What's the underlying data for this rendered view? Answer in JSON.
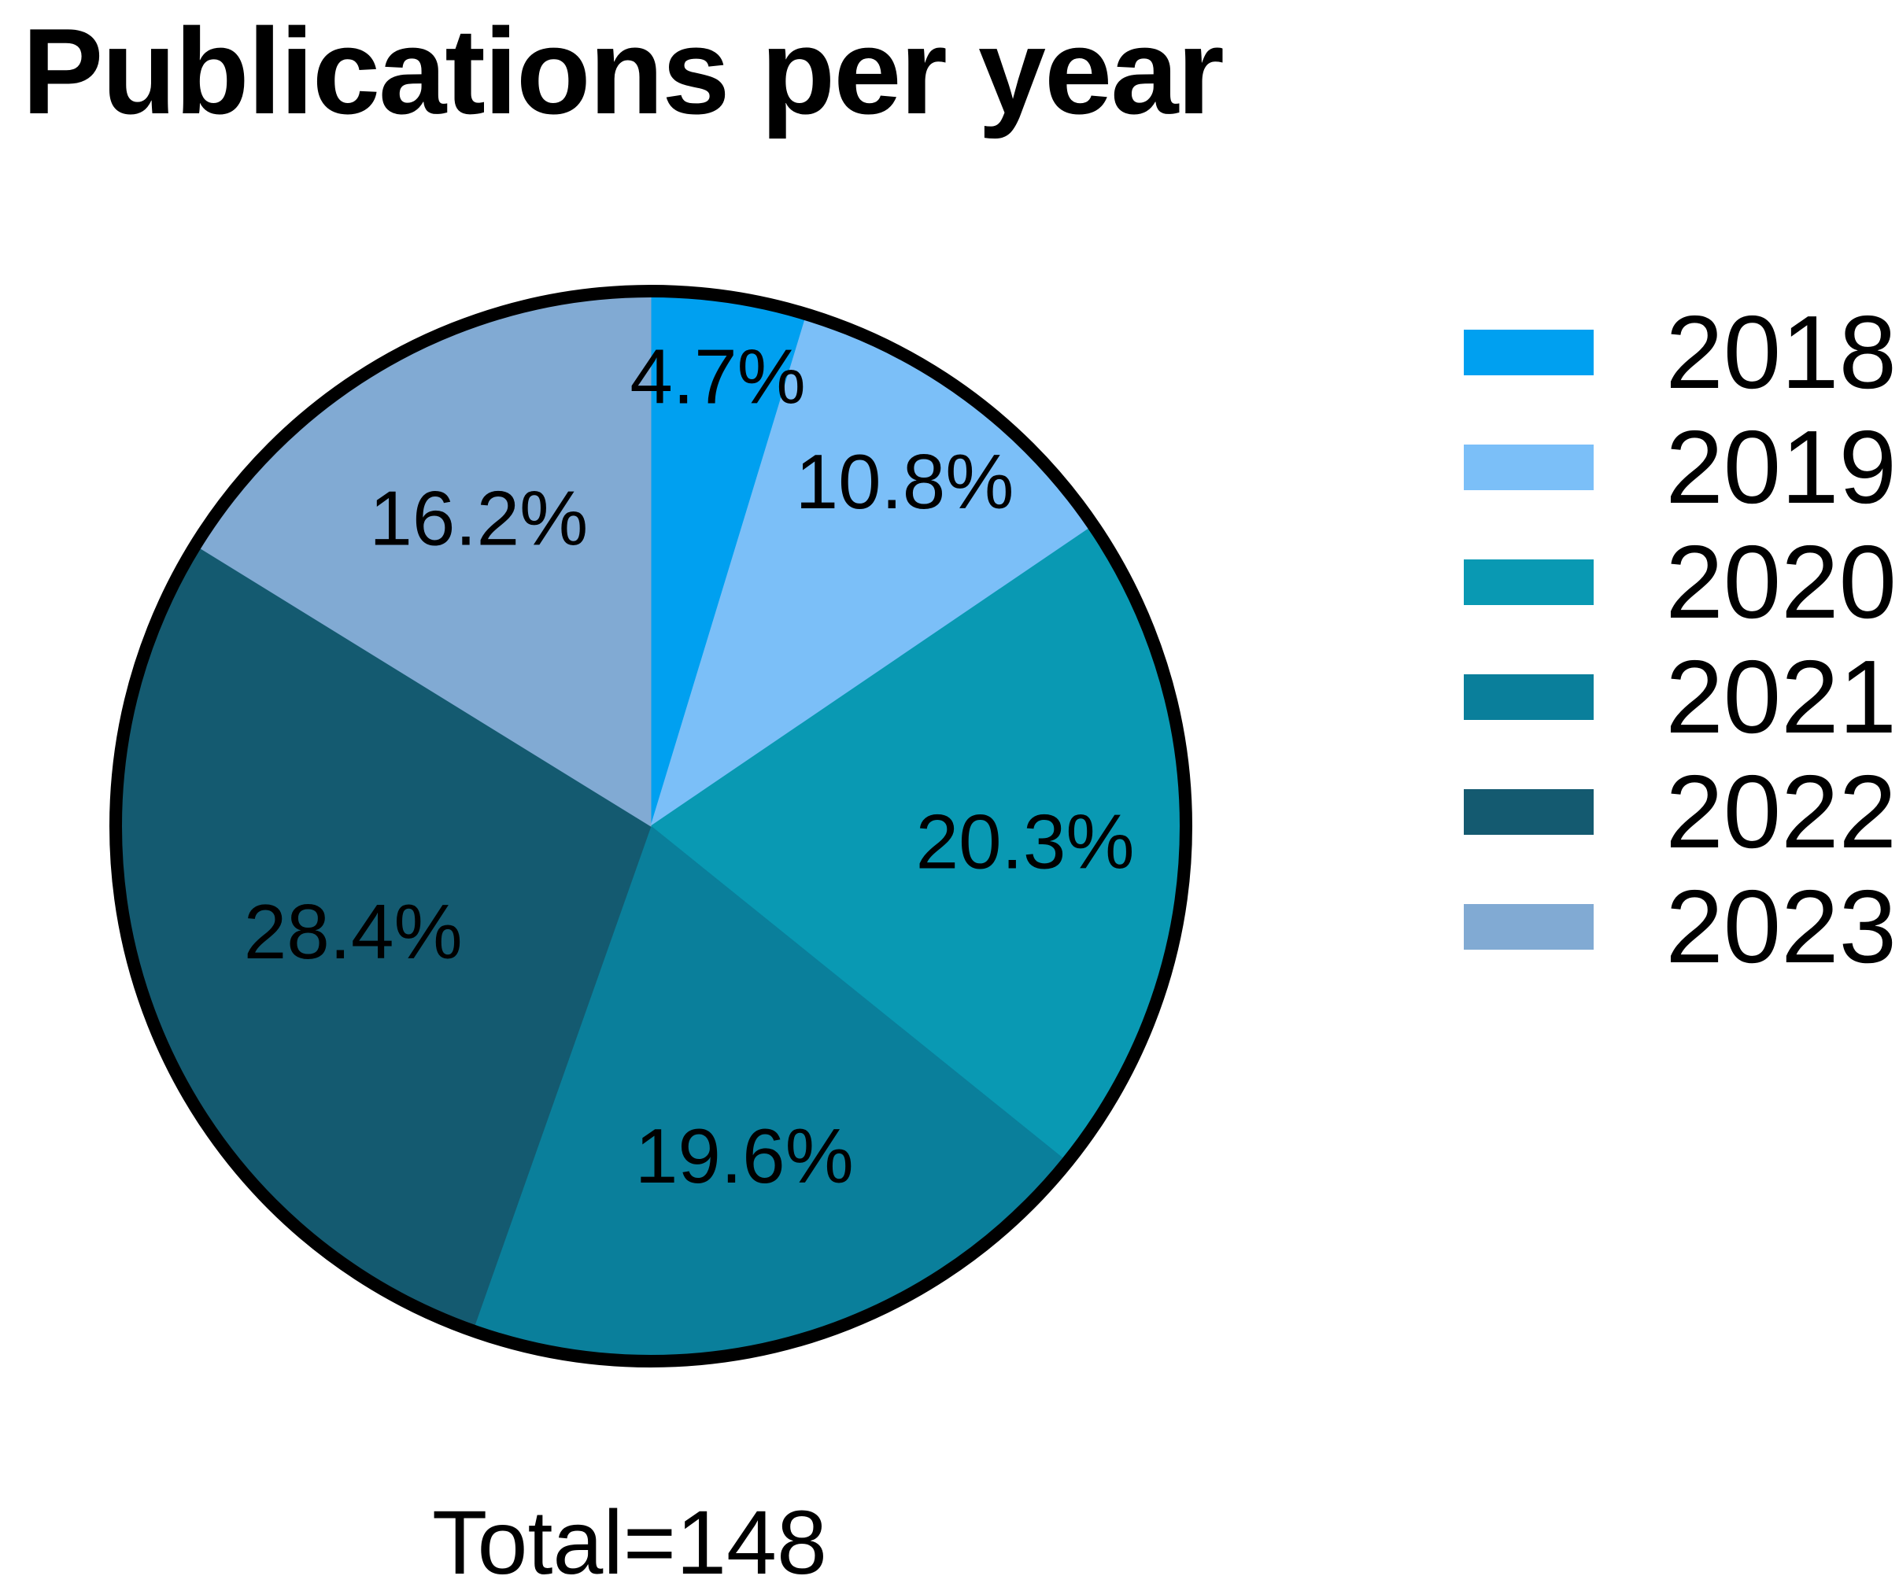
{
  "title": "Publications per year",
  "total_text": "Total=148",
  "chart_data": {
    "type": "pie",
    "title": "Publications per year",
    "categories": [
      "2018",
      "2019",
      "2020",
      "2021",
      "2022",
      "2023"
    ],
    "values": [
      4.7,
      10.8,
      20.3,
      19.6,
      28.4,
      16.2
    ],
    "slice_labels": [
      "4.7%",
      "10.8%",
      "20.3%",
      "19.6%",
      "28.4%",
      "16.2%"
    ],
    "colors": [
      "#00A0F0",
      "#7BBFF8",
      "#0999B3",
      "#0A7F9B",
      "#145A70",
      "#81AAD3"
    ],
    "outline_color": "#000000",
    "total": 148,
    "total_text": "Total=148",
    "start_angle_deg": 0,
    "direction": "clockwise",
    "legend_position": "right",
    "unit": "percent"
  }
}
